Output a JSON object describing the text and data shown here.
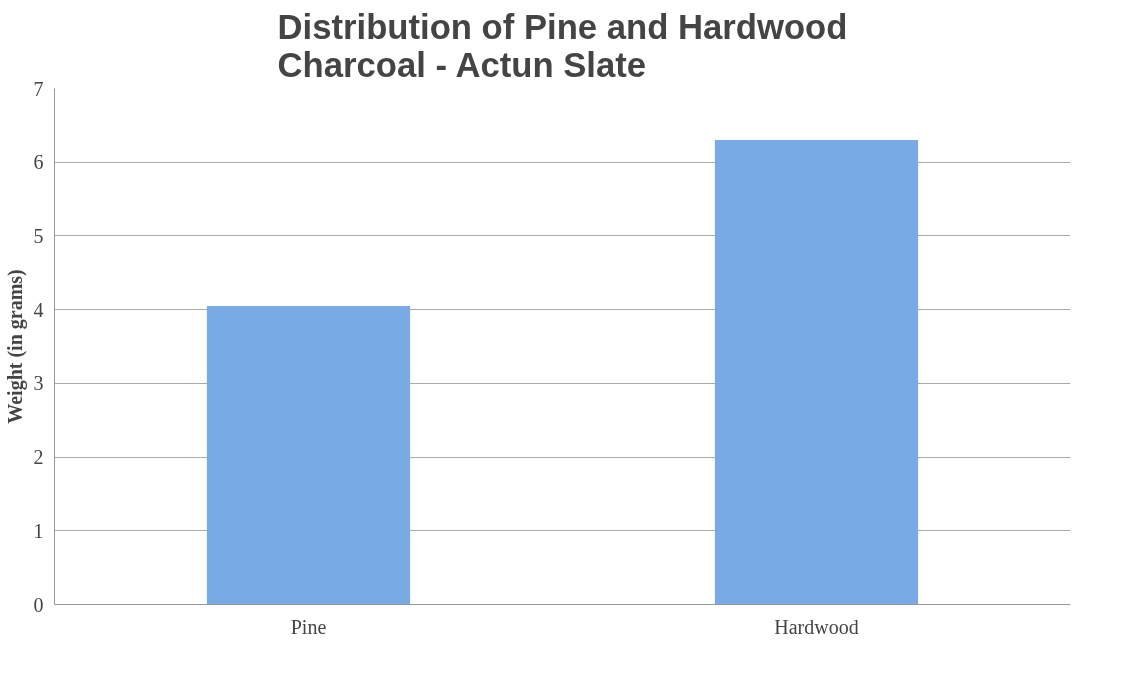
{
  "chart_data": {
    "type": "bar",
    "title": "Distribution of Pine and Hardwood\nCharcoal - Actun Slate",
    "ylabel": "Weight (in grams)",
    "categories": [
      "Pine",
      "Hardwood"
    ],
    "values": [
      4.05,
      6.3
    ],
    "color": "#78aae6",
    "ylim": [
      0,
      7
    ],
    "yticks": [
      0,
      1,
      2,
      3,
      4,
      5,
      6,
      7
    ],
    "grid": "y"
  }
}
